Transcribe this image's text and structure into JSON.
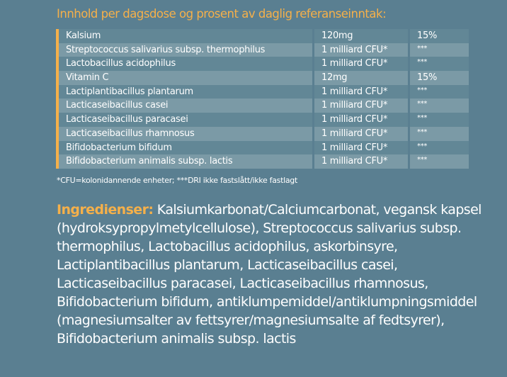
{
  "heading": "Innhold per dagsdose og prosent av daglig referanseinntak:",
  "rows": [
    {
      "name": "Kalsium",
      "amount": "120mg",
      "dri": "15%"
    },
    {
      "name": "Streptococcus salivarius subsp. thermophilus",
      "amount": "1 milliard CFU*",
      "dri": "***"
    },
    {
      "name": "Lactobacillus acidophilus",
      "amount": "1 milliard CFU*",
      "dri": "***"
    },
    {
      "name": "Vitamin C",
      "amount": "12mg",
      "dri": "15%"
    },
    {
      "name": "Lactiplantibacillus plantarum",
      "amount": "1 milliard CFU*",
      "dri": "***"
    },
    {
      "name": "Lacticaseibacillus casei",
      "amount": "1 milliard CFU*",
      "dri": "***"
    },
    {
      "name": "Lacticaseibacillus paracasei",
      "amount": "1 milliard CFU*",
      "dri": "***"
    },
    {
      "name": "Lacticaseibacillus rhamnosus",
      "amount": "1 milliard CFU*",
      "dri": "***"
    },
    {
      "name": "Bifidobacterium bifidum",
      "amount": "1 milliard CFU*",
      "dri": "***"
    },
    {
      "name": "Bifidobacterium animalis subsp. lactis",
      "amount": "1 milliard CFU*",
      "dri": "***"
    }
  ],
  "footnote": "*CFU=kolonidannende enheter; ***DRI ikke fastslått/ikke fastlagt",
  "ingredients": {
    "label": "Ingredienser:",
    "text": "Kalsiumkarbonat/Calciumcarbonat, vegansk kapsel (hydroksypropylmetylcellulose), Streptococcus salivarius subsp. thermophilus, Lactobacillus acidophilus, askorbinsyre, Lactiplantibacillus plantarum, Lacticaseibacillus casei, Lacticaseibacillus paracasei, Lacticaseibacillus rhamnosus, Bifidobacterium bifidum, antiklumpemiddel/antiklumpningsmiddel (magnesiumsalter av fettsyrer/magnesiumsalte af fedtsyrer), Bifidobacterium animalis subsp. lactis"
  },
  "colors": {
    "accent": "#f5b04a",
    "background": "#5a7f91",
    "row_dark": "#628796",
    "row_light": "#7b9aa6"
  }
}
